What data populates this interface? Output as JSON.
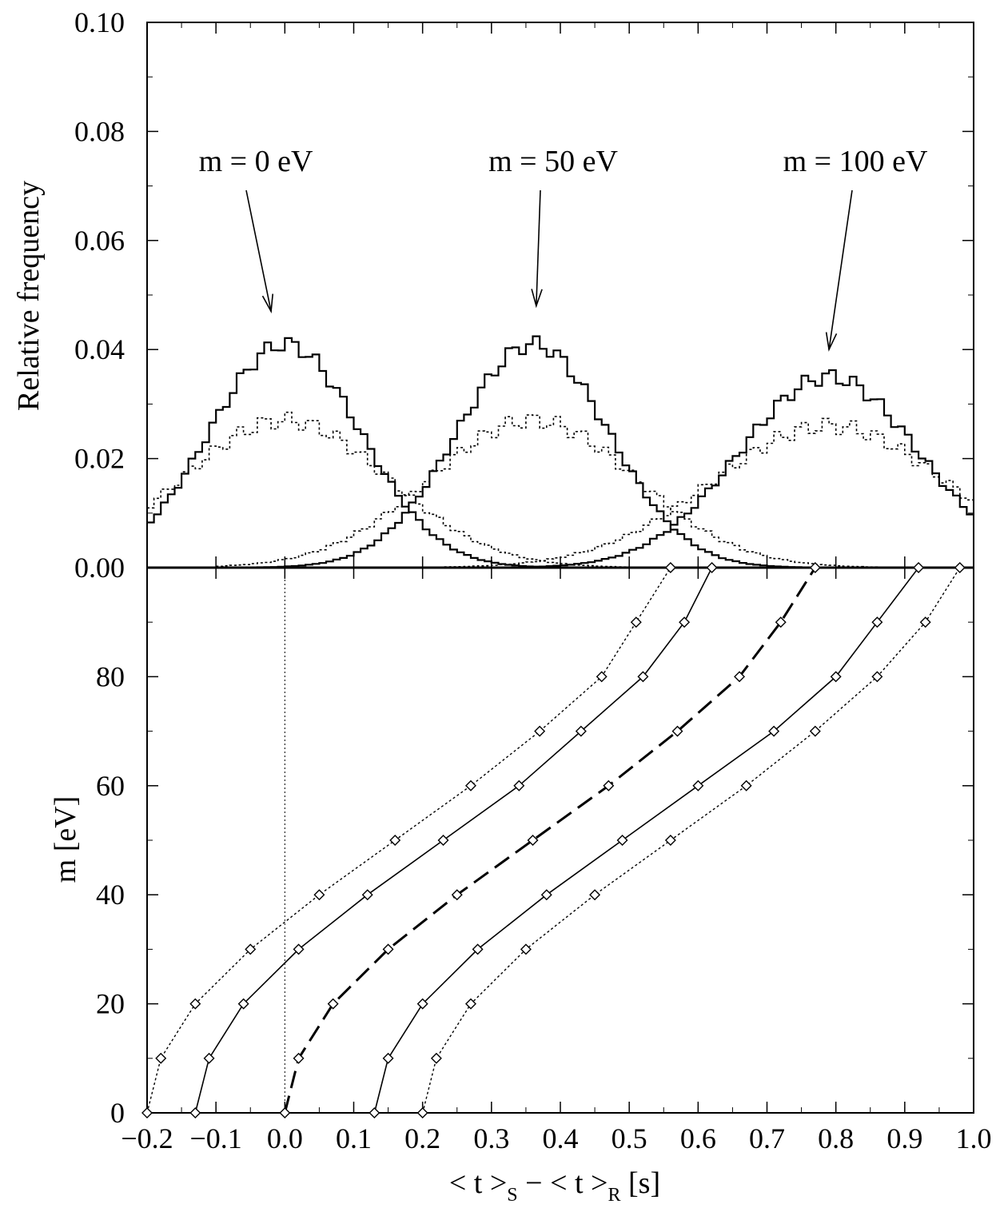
{
  "chart_data": [
    {
      "type": "line",
      "panel": "top-histogram",
      "ylabel": "Relative frequency",
      "ylim": [
        0,
        0.1
      ],
      "xlim": [
        -0.2,
        1.0
      ],
      "yticks": [
        "0.00",
        "0.02",
        "0.04",
        "0.06",
        "0.08",
        "0.10"
      ],
      "ytick_values": [
        0,
        0.02,
        0.04,
        0.06,
        0.08,
        0.1
      ],
      "annotations": [
        {
          "text": "m = 0 eV",
          "points_to": [
            -0.02,
            0.047
          ]
        },
        {
          "text": "m = 50 eV",
          "points_to": [
            0.365,
            0.048
          ]
        },
        {
          "text": "m = 100 eV",
          "points_to": [
            0.79,
            0.04
          ]
        }
      ],
      "series": [
        {
          "style": "solid",
          "center": 0.0,
          "width": 0.11,
          "peak": 0.041,
          "range": [
            -0.2,
            0.7
          ]
        },
        {
          "style": "dotted",
          "center": 0.0,
          "width": 0.15,
          "peak": 0.027,
          "range": [
            -0.2,
            0.7
          ]
        },
        {
          "style": "solid",
          "center": 0.36,
          "width": 0.11,
          "peak": 0.041,
          "range": [
            -0.1,
            0.95
          ]
        },
        {
          "style": "dotted",
          "center": 0.36,
          "width": 0.15,
          "peak": 0.027,
          "range": [
            -0.1,
            0.95
          ]
        },
        {
          "style": "solid",
          "center": 0.79,
          "width": 0.13,
          "peak": 0.035,
          "range": [
            0.1,
            1.0
          ]
        },
        {
          "style": "dotted",
          "center": 0.79,
          "width": 0.17,
          "peak": 0.026,
          "range": [
            0.1,
            1.0
          ]
        }
      ]
    },
    {
      "type": "line",
      "panel": "bottom-mass",
      "xlabel_parts": [
        "< t >",
        "S",
        " − < t >",
        "R",
        "  [s]"
      ],
      "ylabel": "m  [eV]",
      "xlim": [
        -0.2,
        1.0
      ],
      "ylim": [
        0,
        100
      ],
      "xticks": [
        "−0.2",
        "−0.1",
        "0.0",
        "0.1",
        "0.2",
        "0.3",
        "0.4",
        "0.5",
        "0.6",
        "0.7",
        "0.8",
        "0.9",
        "1.0"
      ],
      "xtick_values": [
        -0.2,
        -0.1,
        0,
        0.1,
        0.2,
        0.3,
        0.4,
        0.5,
        0.6,
        0.7,
        0.8,
        0.9,
        1.0
      ],
      "yticks": [
        "0",
        "20",
        "40",
        "60",
        "80"
      ],
      "ytick_values": [
        0,
        20,
        40,
        60,
        80
      ],
      "reference_line_x": 0.0,
      "series": [
        {
          "style": "dotted",
          "points": [
            [
              -0.2,
              0
            ],
            [
              -0.18,
              10
            ],
            [
              -0.13,
              20
            ],
            [
              -0.05,
              30
            ],
            [
              0.05,
              40
            ],
            [
              0.16,
              50
            ],
            [
              0.27,
              60
            ],
            [
              0.37,
              70
            ],
            [
              0.46,
              80
            ],
            [
              0.51,
              90
            ],
            [
              0.56,
              100
            ]
          ]
        },
        {
          "style": "solid",
          "points": [
            [
              -0.13,
              0
            ],
            [
              -0.11,
              10
            ],
            [
              -0.06,
              20
            ],
            [
              0.02,
              30
            ],
            [
              0.12,
              40
            ],
            [
              0.23,
              50
            ],
            [
              0.34,
              60
            ],
            [
              0.43,
              70
            ],
            [
              0.52,
              80
            ],
            [
              0.58,
              90
            ],
            [
              0.62,
              100
            ]
          ]
        },
        {
          "style": "dashed",
          "points": [
            [
              0.0,
              0
            ],
            [
              0.02,
              10
            ],
            [
              0.07,
              20
            ],
            [
              0.15,
              30
            ],
            [
              0.25,
              40
            ],
            [
              0.36,
              50
            ],
            [
              0.47,
              60
            ],
            [
              0.57,
              70
            ],
            [
              0.66,
              80
            ],
            [
              0.72,
              90
            ],
            [
              0.77,
              100
            ]
          ]
        },
        {
          "style": "solid",
          "points": [
            [
              0.13,
              0
            ],
            [
              0.15,
              10
            ],
            [
              0.2,
              20
            ],
            [
              0.28,
              30
            ],
            [
              0.38,
              40
            ],
            [
              0.49,
              50
            ],
            [
              0.6,
              60
            ],
            [
              0.71,
              70
            ],
            [
              0.8,
              80
            ],
            [
              0.86,
              90
            ],
            [
              0.92,
              100
            ]
          ]
        },
        {
          "style": "dotted",
          "points": [
            [
              0.2,
              0
            ],
            [
              0.22,
              10
            ],
            [
              0.27,
              20
            ],
            [
              0.35,
              30
            ],
            [
              0.45,
              40
            ],
            [
              0.56,
              50
            ],
            [
              0.67,
              60
            ],
            [
              0.77,
              70
            ],
            [
              0.86,
              80
            ],
            [
              0.93,
              90
            ],
            [
              0.98,
              100
            ]
          ]
        }
      ]
    }
  ]
}
